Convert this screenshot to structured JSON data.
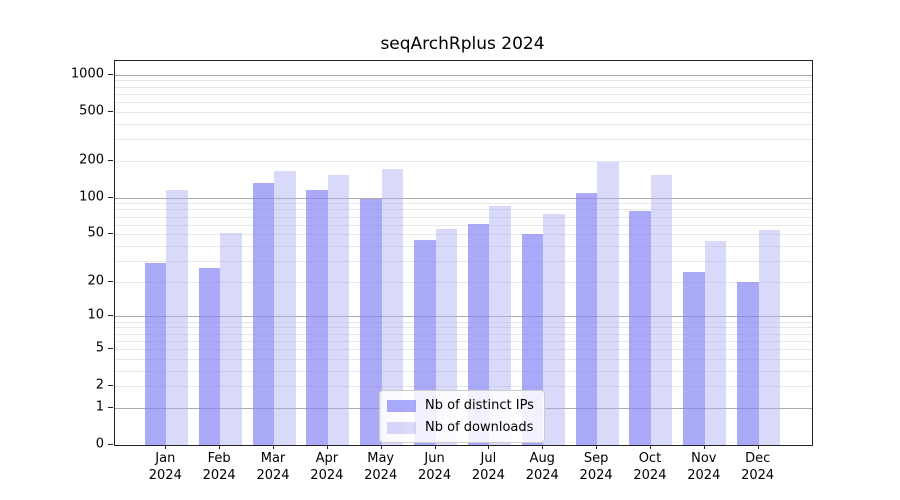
{
  "chart_data": {
    "type": "bar",
    "title": "seqArchRplus 2024",
    "categories": [
      {
        "month": "Jan",
        "year": "2024"
      },
      {
        "month": "Feb",
        "year": "2024"
      },
      {
        "month": "Mar",
        "year": "2024"
      },
      {
        "month": "Apr",
        "year": "2024"
      },
      {
        "month": "May",
        "year": "2024"
      },
      {
        "month": "Jun",
        "year": "2024"
      },
      {
        "month": "Jul",
        "year": "2024"
      },
      {
        "month": "Aug",
        "year": "2024"
      },
      {
        "month": "Sep",
        "year": "2024"
      },
      {
        "month": "Oct",
        "year": "2024"
      },
      {
        "month": "Nov",
        "year": "2024"
      },
      {
        "month": "Dec",
        "year": "2024"
      }
    ],
    "series": [
      {
        "name": "Nb of distinct IPs",
        "color": "rgba(130,130,246,0.68)",
        "values": [
          29,
          26,
          132,
          115,
          98,
          45,
          61,
          50,
          110,
          78,
          24,
          20
        ]
      },
      {
        "name": "Nb of downloads",
        "color": "rgba(170,170,244,0.45)",
        "values": [
          115,
          51,
          165,
          154,
          170,
          55,
          85,
          73,
          195,
          152,
          44,
          54
        ]
      }
    ],
    "yscale": "log1p",
    "ylim": [
      0,
      1300
    ],
    "yticks": [
      0,
      1,
      2,
      5,
      10,
      20,
      50,
      100,
      200,
      500,
      1000
    ],
    "grid": {
      "orientation": "horizontal",
      "major_at": [
        1,
        10,
        100,
        1000
      ],
      "major_color": "#ababab",
      "minor_color": "#e7e7e7"
    },
    "legend_position": "lower center",
    "axis_color": "#222222",
    "text_color": "#000000"
  }
}
